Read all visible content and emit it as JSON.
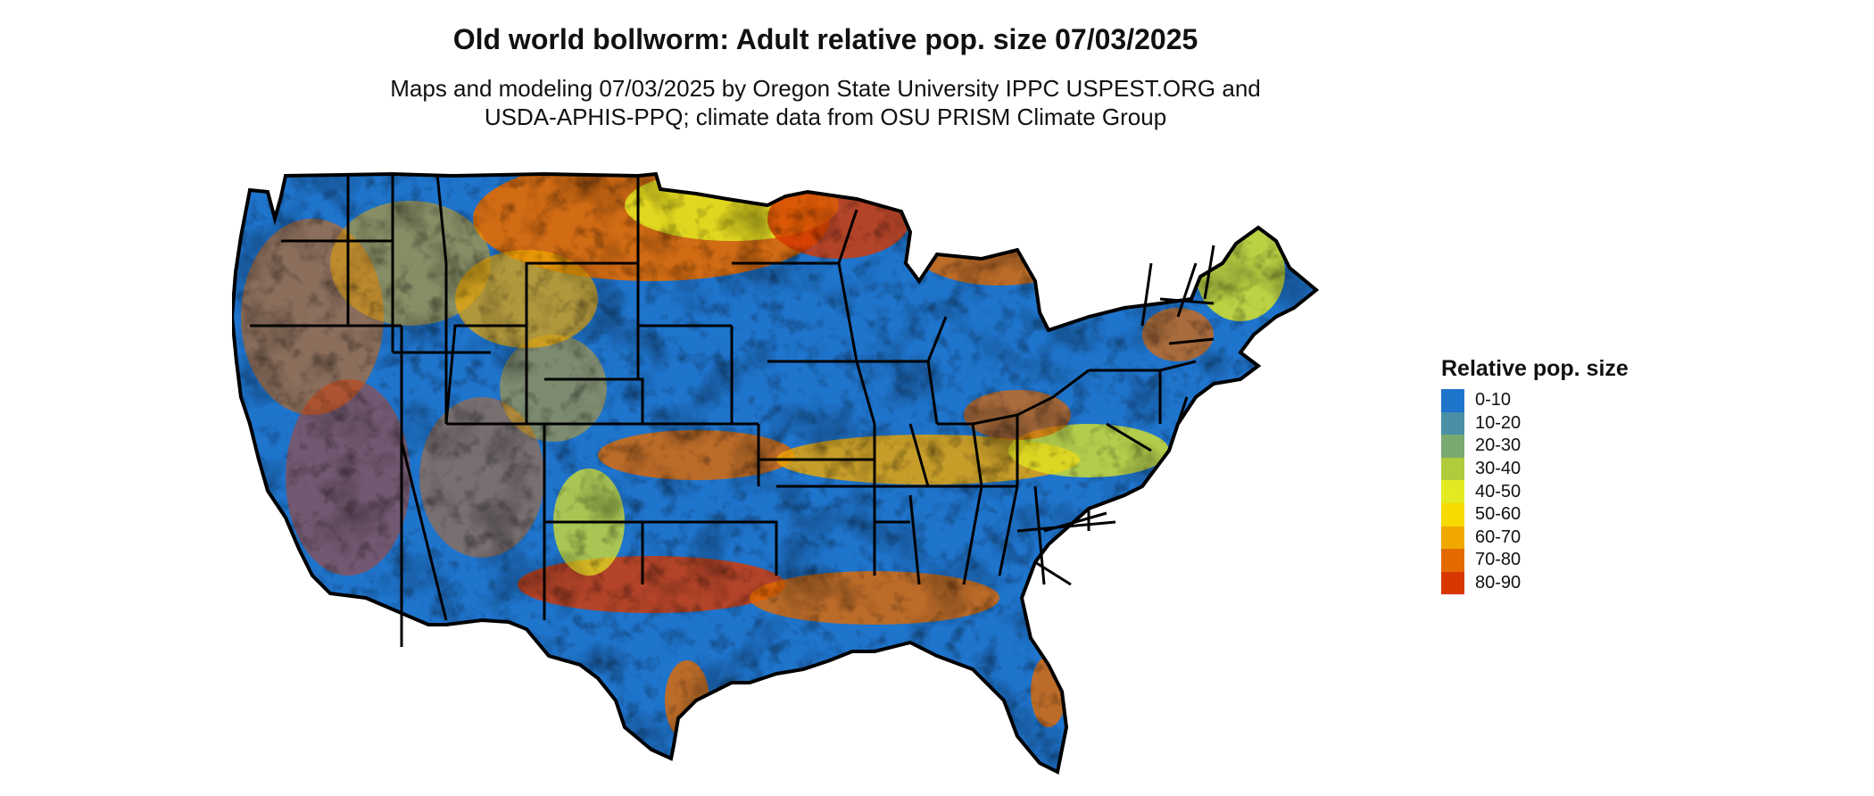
{
  "title": "Old world bollworm: Adult relative pop. size 07/03/2025",
  "subtitle_line1": "Maps and modeling 07/03/2025 by Oregon State University IPPC USPEST.ORG and",
  "subtitle_line2": "USDA-APHIS-PPQ; climate data from OSU PRISM Climate Group",
  "map": {
    "region": "Contiguous United States",
    "base_color": "#1f74cc",
    "outline_color": "#000000"
  },
  "legend": {
    "title": "Relative pop. size",
    "items": [
      {
        "label": "0-10",
        "color": "#1f74cc"
      },
      {
        "label": "10-20",
        "color": "#4a8fa6"
      },
      {
        "label": "20-30",
        "color": "#7aa96f"
      },
      {
        "label": "30-40",
        "color": "#b0cc3c"
      },
      {
        "label": "40-50",
        "color": "#e4ea22"
      },
      {
        "label": "50-60",
        "color": "#f6da00"
      },
      {
        "label": "60-70",
        "color": "#f0a800"
      },
      {
        "label": "70-80",
        "color": "#e46a00"
      },
      {
        "label": "80-90",
        "color": "#d83800"
      }
    ]
  }
}
